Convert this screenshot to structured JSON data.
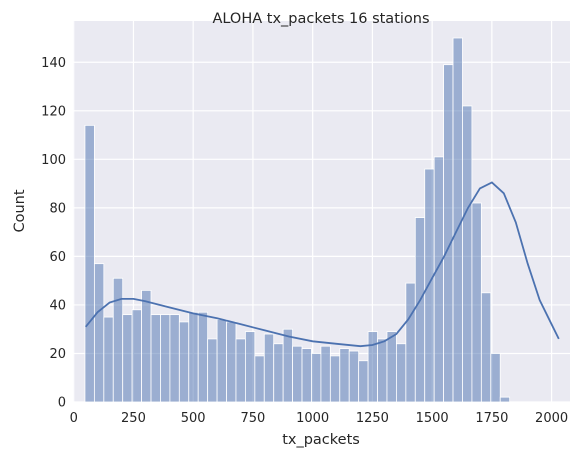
{
  "chart_data": {
    "type": "bar",
    "title": "ALOHA tx_packets 16 stations",
    "xlabel": "tx_packets",
    "ylabel": "Count",
    "xlim": [
      -3,
      2077
    ],
    "ylim": [
      0,
      157
    ],
    "xticks": [
      0,
      250,
      500,
      750,
      1000,
      1250,
      1500,
      1750,
      2000
    ],
    "yticks": [
      0,
      20,
      40,
      60,
      80,
      100,
      120,
      140
    ],
    "grid": true,
    "legend": "none",
    "bin_start": 47,
    "bin_width": 39.5,
    "values": [
      114,
      57,
      35,
      51,
      36,
      38,
      46,
      36,
      36,
      36,
      33,
      37,
      37,
      26,
      34,
      33,
      26,
      29,
      19,
      28,
      24,
      30,
      23,
      22,
      20,
      23,
      19,
      22,
      21,
      17,
      29,
      26,
      29,
      24,
      49,
      76,
      96,
      101,
      139,
      150,
      122,
      82,
      45,
      20,
      2
    ],
    "kde": {
      "x": [
        50,
        100,
        150,
        200,
        250,
        300,
        400,
        500,
        600,
        700,
        800,
        900,
        1000,
        1100,
        1200,
        1250,
        1300,
        1350,
        1400,
        1450,
        1500,
        1550,
        1600,
        1650,
        1700,
        1750,
        1800,
        1850,
        1900,
        1950,
        2000,
        2030
      ],
      "y": [
        31,
        37,
        41,
        42.5,
        42.5,
        41.5,
        39,
        36.5,
        34.5,
        32,
        29.5,
        27,
        25,
        24,
        23,
        23.5,
        25,
        28,
        34,
        42,
        51,
        60,
        70,
        80,
        88,
        90.5,
        86,
        74,
        57,
        42,
        32,
        26
      ]
    },
    "colors": {
      "background": "#eaeaf2",
      "grid": "#ffffff",
      "bar_fill": "#4c72b0",
      "bar_stroke": "#ffffff",
      "kde_line": "#4c72b0"
    }
  }
}
